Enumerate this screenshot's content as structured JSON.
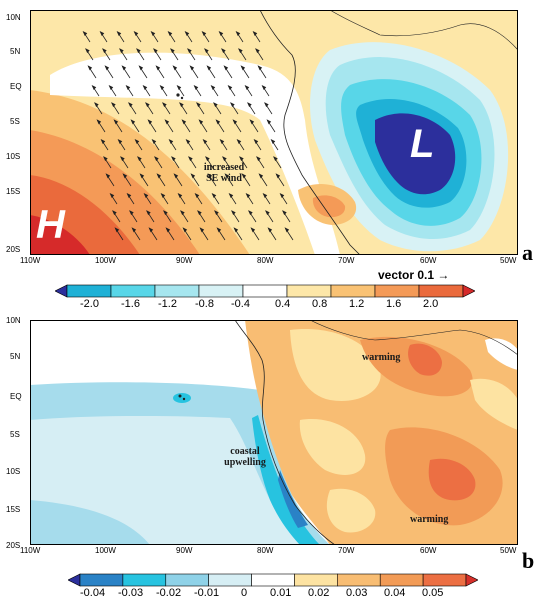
{
  "panel_a": {
    "label": "a",
    "high_label": "H",
    "low_label": "L",
    "annotation": "increased\nSE wind",
    "vector_label": "vector 0.1 →",
    "lat_ticks": [
      "10N",
      "5N",
      "EQ",
      "5S",
      "10S",
      "15S",
      "20S"
    ],
    "lon_ticks": [
      "110W",
      "100W",
      "90W",
      "80W",
      "70W",
      "60W",
      "50W"
    ],
    "colorbar_labels": [
      "-2.0",
      "-1.6",
      "-1.2",
      "-0.8",
      "-0.4",
      "0.4",
      "0.8",
      "1.2",
      "1.6",
      "2.0"
    ],
    "colorbar_colors": [
      "#2c2f9c",
      "#1fb1d6",
      "#58d6e8",
      "#a6e6ef",
      "#d8f2f5",
      "#ffffff",
      "#fde7a8",
      "#f9c274",
      "#f49a57",
      "#ea6a3c",
      "#d62a2a"
    ]
  },
  "panel_b": {
    "label": "b",
    "annotation_upwelling": "coastal\nupwelling",
    "annotation_warming_north": "warming",
    "annotation_warming_south": "warming",
    "lat_ticks": [
      "10N",
      "5N",
      "EQ",
      "5S",
      "10S",
      "15S",
      "20S"
    ],
    "lon_ticks": [
      "110W",
      "100W",
      "90W",
      "80W",
      "70W",
      "60W",
      "50W"
    ],
    "colorbar_labels": [
      "-0.04",
      "-0.03",
      "-0.02",
      "-0.01",
      "0",
      "0.01",
      "0.02",
      "0.03",
      "0.04",
      "0.05"
    ],
    "colorbar_colors": [
      "#2c2f9c",
      "#2a82c6",
      "#27c3e0",
      "#8fd2e8",
      "#d6eef4",
      "#ffffff",
      "#fde3a2",
      "#f8bd73",
      "#f29b56",
      "#ec6f43",
      "#d6302a"
    ]
  }
}
